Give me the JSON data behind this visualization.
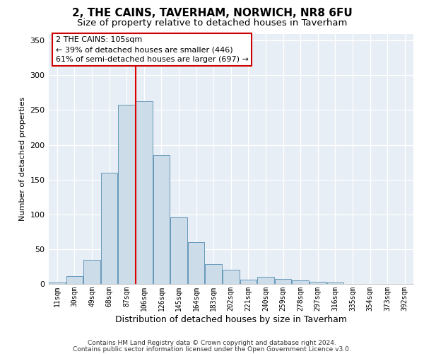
{
  "title": "2, THE CAINS, TAVERHAM, NORWICH, NR8 6FU",
  "subtitle": "Size of property relative to detached houses in Taverham",
  "xlabel": "Distribution of detached houses by size in Taverham",
  "ylabel": "Number of detached properties",
  "bar_color": "#ccdce8",
  "bar_edge_color": "#6699bb",
  "categories": [
    "11sqm",
    "30sqm",
    "49sqm",
    "68sqm",
    "87sqm",
    "106sqm",
    "126sqm",
    "145sqm",
    "164sqm",
    "183sqm",
    "202sqm",
    "221sqm",
    "240sqm",
    "259sqm",
    "278sqm",
    "297sqm",
    "316sqm",
    "335sqm",
    "354sqm",
    "373sqm",
    "392sqm"
  ],
  "bar_heights": [
    2,
    11,
    35,
    160,
    258,
    263,
    185,
    96,
    60,
    28,
    20,
    6,
    10,
    7,
    5,
    3,
    2,
    0,
    0,
    0,
    0
  ],
  "red_line_color": "#dd0000",
  "annotation_line1": "2 THE CAINS: 105sqm",
  "annotation_line2": "← 39% of detached houses are smaller (446)",
  "annotation_line3": "61% of semi-detached houses are larger (697) →",
  "ylim_max": 360,
  "yticks": [
    0,
    50,
    100,
    150,
    200,
    250,
    300,
    350
  ],
  "bg_color": "#e8eef5",
  "footer1": "Contains HM Land Registry data © Crown copyright and database right 2024.",
  "footer2": "Contains public sector information licensed under the Open Government Licence v3.0."
}
